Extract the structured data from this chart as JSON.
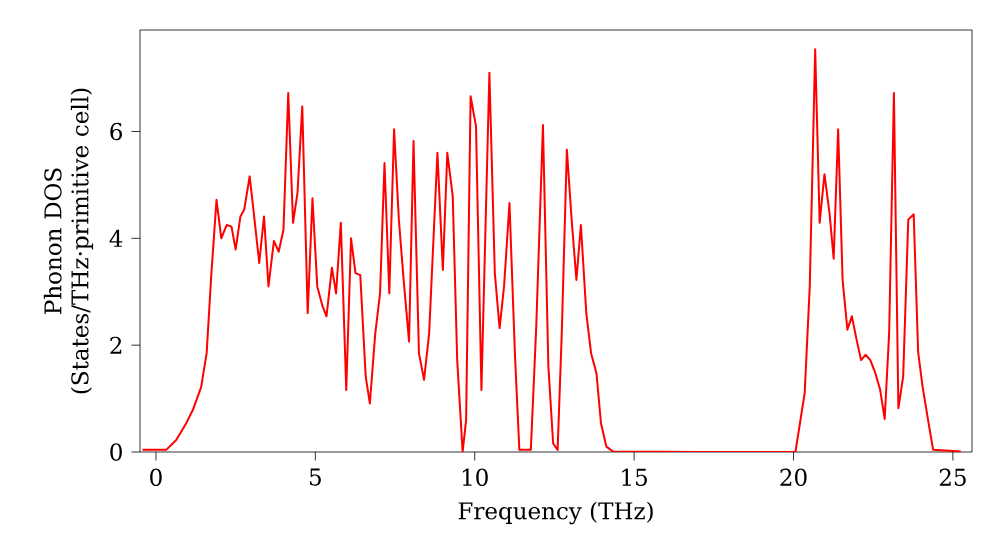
{
  "chart_data": {
    "type": "line",
    "xlabel": "Frequency (THz)",
    "ylabel": "Phonon DOS (States/THz·primitive cell)",
    "xlim": [
      -0.5,
      25.6
    ],
    "ylim": [
      0,
      7.9
    ],
    "xticks": [
      0,
      5,
      10,
      15,
      20,
      25
    ],
    "yticks": [
      0,
      2,
      4,
      6
    ],
    "grid": false,
    "marker": "none",
    "line_style": "solid",
    "series": [
      {
        "color": "#ff0000",
        "x": [
          -0.42,
          0.32,
          0.63,
          0.95,
          1.16,
          1.42,
          1.59,
          1.74,
          1.9,
          2.05,
          2.22,
          2.37,
          2.5,
          2.65,
          2.77,
          2.94,
          3.07,
          3.24,
          3.39,
          3.53,
          3.7,
          3.85,
          4.0,
          4.15,
          4.3,
          4.44,
          4.59,
          4.76,
          4.91,
          5.06,
          5.23,
          5.35,
          5.52,
          5.65,
          5.8,
          5.97,
          6.12,
          6.26,
          6.41,
          6.58,
          6.71,
          6.88,
          7.03,
          7.17,
          7.32,
          7.47,
          7.62,
          7.77,
          7.94,
          8.08,
          8.25,
          8.41,
          8.57,
          8.83,
          9.0,
          9.14,
          9.31,
          9.45,
          9.62,
          9.73,
          9.87,
          10.04,
          10.21,
          10.46,
          10.63,
          10.78,
          10.92,
          11.09,
          11.26,
          11.4,
          11.76,
          11.93,
          12.14,
          12.31,
          12.46,
          12.6,
          12.73,
          12.89,
          13.04,
          13.19,
          13.33,
          13.5,
          13.65,
          13.82,
          13.96,
          14.13,
          14.34,
          17,
          20.06,
          20.35,
          20.51,
          20.68,
          20.82,
          20.97,
          21.13,
          21.26,
          21.4,
          21.54,
          21.69,
          21.83,
          21.98,
          22.12,
          22.26,
          22.41,
          22.57,
          22.72,
          22.86,
          23.0,
          23.15,
          23.29,
          23.44,
          23.6,
          23.77,
          23.91,
          24.05,
          24.22,
          24.38,
          25.25
        ],
        "values": [
          0.04,
          0.04,
          0.22,
          0.54,
          0.79,
          1.22,
          1.85,
          3.35,
          4.72,
          4.0,
          4.25,
          4.22,
          3.79,
          4.41,
          4.54,
          5.16,
          4.47,
          3.54,
          4.41,
          3.1,
          3.95,
          3.75,
          4.16,
          6.72,
          4.29,
          4.85,
          6.47,
          2.6,
          4.75,
          3.1,
          2.72,
          2.54,
          3.45,
          2.97,
          4.29,
          1.16,
          4.0,
          3.35,
          3.31,
          1.41,
          0.91,
          2.22,
          2.97,
          5.41,
          2.97,
          6.04,
          4.35,
          3.22,
          2.07,
          5.82,
          1.85,
          1.35,
          2.22,
          5.6,
          3.41,
          5.6,
          4.79,
          1.72,
          0,
          0.6,
          6.66,
          6.1,
          1.16,
          7.1,
          3.35,
          2.32,
          3.1,
          4.66,
          1.85,
          0.04,
          0.04,
          2.35,
          6.12,
          1.6,
          0.16,
          0.04,
          2.22,
          5.66,
          4.35,
          3.22,
          4.25,
          2.6,
          1.85,
          1.47,
          0.54,
          0.1,
          0.01,
          0,
          0,
          1.1,
          3.1,
          7.54,
          4.29,
          5.2,
          4.47,
          3.62,
          6.04,
          3.22,
          2.29,
          2.54,
          2.1,
          1.72,
          1.82,
          1.72,
          1.47,
          1.16,
          0.62,
          2.22,
          6.72,
          0.82,
          1.41,
          4.35,
          4.45,
          1.87,
          1.22,
          0.6,
          0.04,
          0.01
        ]
      }
    ]
  }
}
